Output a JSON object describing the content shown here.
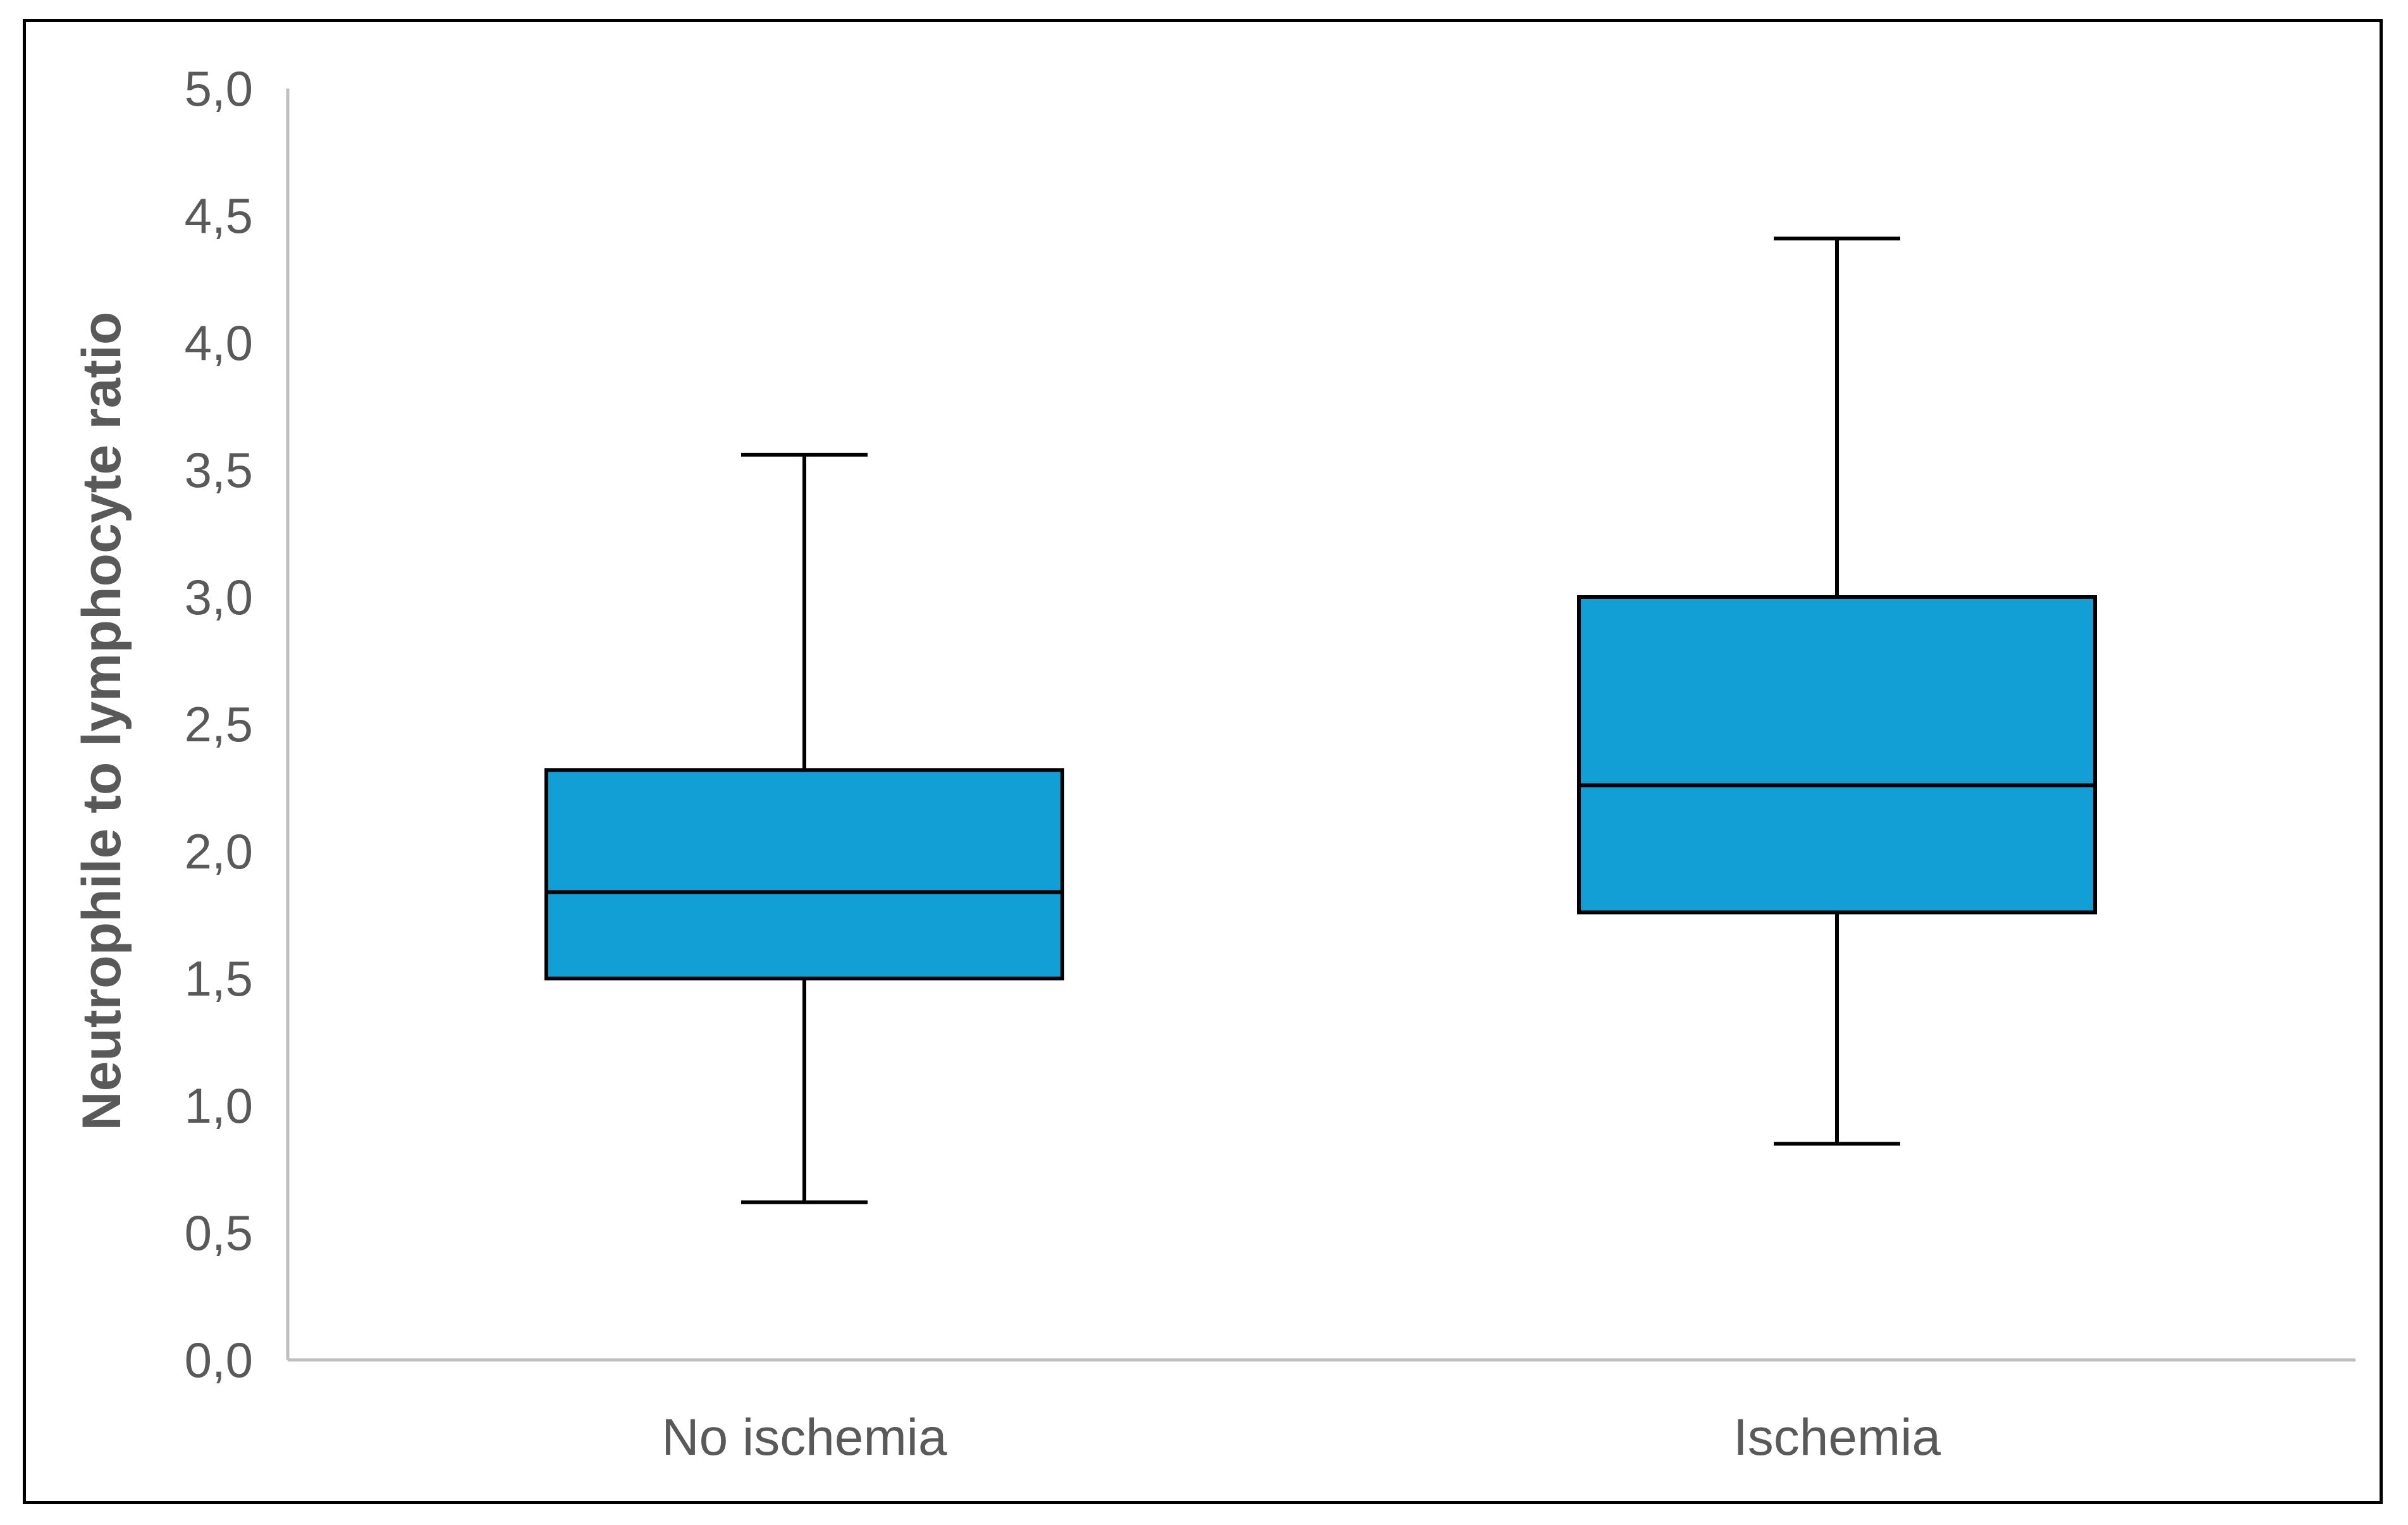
{
  "chart_data": {
    "type": "box",
    "title": "",
    "xlabel": "",
    "ylabel": "Neutrophile to lymphocyte ratio",
    "ylim": [
      0,
      5
    ],
    "yticks": [
      "0,0",
      "0,5",
      "1,0",
      "1,5",
      "2,0",
      "2,5",
      "3,0",
      "3,5",
      "4,0",
      "4,5",
      "5,0"
    ],
    "grid": false,
    "legend": "none",
    "categories": [
      "No ischemia",
      "Ischemia"
    ],
    "boxes": [
      {
        "category": "No ischemia",
        "min": 0.62,
        "q1": 1.5,
        "median": 1.84,
        "q3": 2.32,
        "max": 3.56
      },
      {
        "category": "Ischemia",
        "min": 0.85,
        "q1": 1.76,
        "median": 2.26,
        "q3": 3.0,
        "max": 4.41
      }
    ],
    "colors": {
      "box_fill": "#119FD6",
      "box_stroke": "#000000",
      "whisker": "#000000",
      "axis": "#BFBFBF",
      "text": "#595959"
    }
  }
}
